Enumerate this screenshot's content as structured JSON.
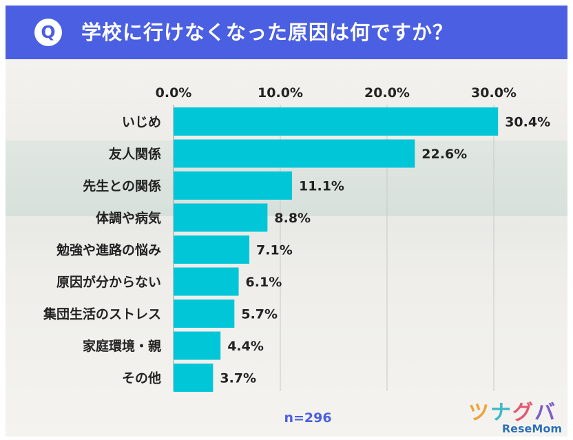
{
  "header": {
    "badge": "Q",
    "title": "学校に行けなくなった原因は何ですか？",
    "color": "#4a5fe2"
  },
  "chart_data": {
    "type": "bar",
    "orientation": "horizontal",
    "categories": [
      "いじめ",
      "友人関係",
      "先生との関係",
      "体調や病気",
      "勉強や進路の悩み",
      "原因が分からない",
      "集団生活のストレス",
      "家庭環境・親",
      "その他"
    ],
    "values": [
      30.4,
      22.6,
      11.1,
      8.8,
      7.1,
      6.1,
      5.7,
      4.4,
      3.7
    ],
    "value_labels": [
      "30.4%",
      "22.6%",
      "11.1%",
      "8.8%",
      "7.1%",
      "6.1%",
      "5.7%",
      "4.4%",
      "3.7%"
    ],
    "x_ticks": [
      0,
      10,
      20,
      30
    ],
    "x_tick_labels": [
      "0.0%",
      "10.0%",
      "20.0%",
      "30.0%"
    ],
    "xlim": [
      0,
      35
    ],
    "axis_position": "top",
    "grid": true,
    "bar_color": "#00c6d8",
    "title": "",
    "xlabel": "",
    "ylabel": ""
  },
  "sample_size": "n=296",
  "logo": {
    "katakana": [
      "ツ",
      "ナ",
      "グ",
      "バ"
    ],
    "resemom": "ReseMom"
  }
}
